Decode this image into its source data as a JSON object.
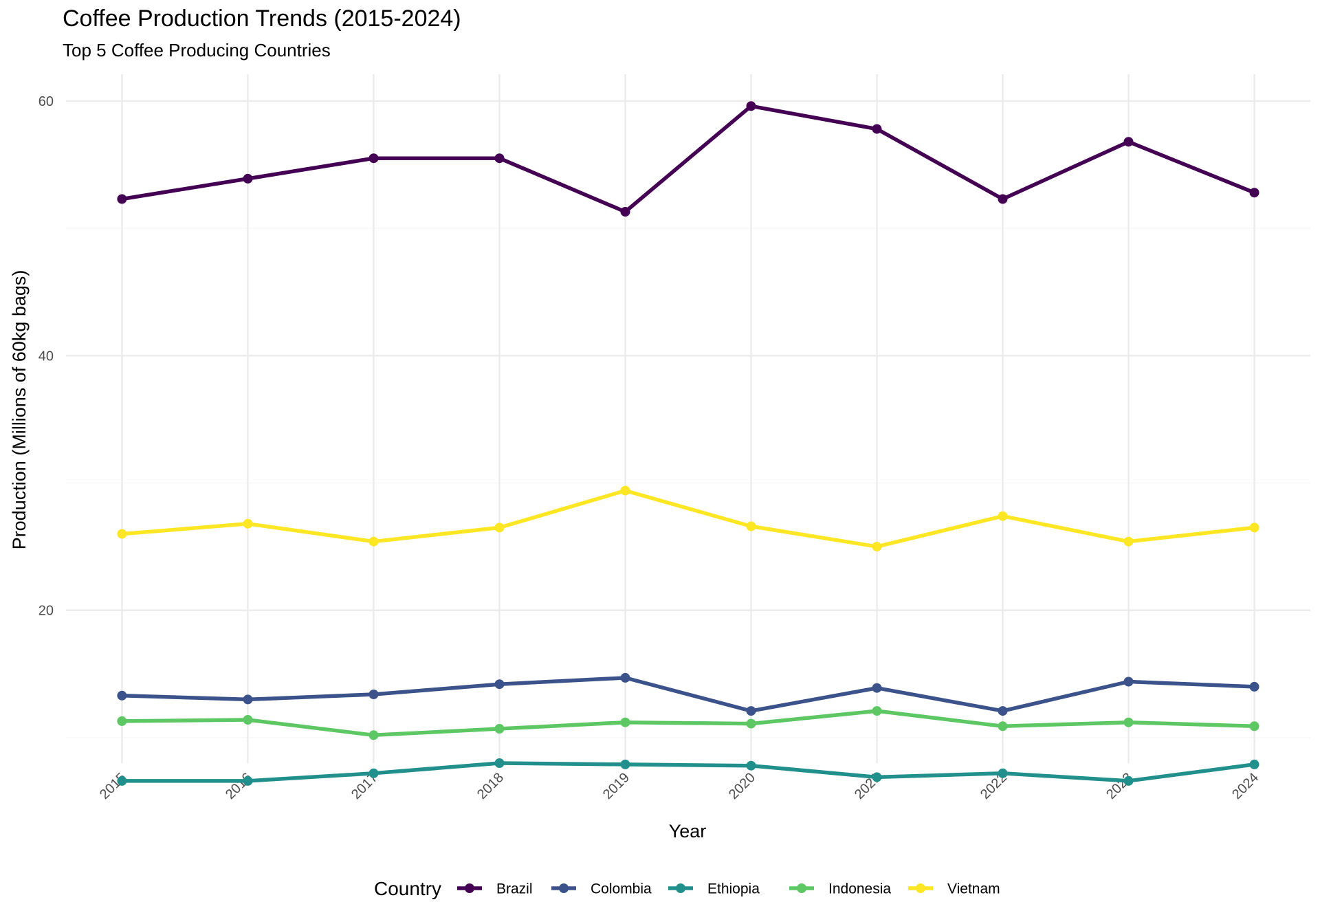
{
  "chart_data": {
    "type": "line",
    "title": "Coffee Production Trends (2015-2024)",
    "subtitle": "Top 5 Coffee Producing Countries",
    "xlabel": "Year",
    "ylabel": "Production (Millions of 60kg bags)",
    "x": [
      "2015",
      "2016",
      "2017",
      "2018",
      "2019",
      "2020",
      "2021",
      "2022",
      "2023",
      "2024"
    ],
    "x_range": [
      2015,
      2024
    ],
    "ylim": [
      8.0,
      62.1
    ],
    "yticks": [
      20,
      40,
      60
    ],
    "grid": true,
    "legend": {
      "title": "Country",
      "position": "bottom"
    },
    "series": [
      {
        "name": "Brazil",
        "color": "#440154",
        "values": [
          52.3,
          53.9,
          55.5,
          55.5,
          51.3,
          59.6,
          57.8,
          52.3,
          56.8,
          52.8
        ]
      },
      {
        "name": "Colombia",
        "color": "#3B528B",
        "values": [
          13.3,
          13.0,
          13.4,
          14.2,
          14.7,
          12.1,
          13.9,
          12.1,
          14.4,
          14.0
        ]
      },
      {
        "name": "Ethiopia",
        "color": "#21908C",
        "values": [
          6.6,
          6.6,
          7.2,
          8.0,
          7.9,
          7.8,
          6.9,
          7.2,
          6.6,
          7.9
        ]
      },
      {
        "name": "Indonesia",
        "color": "#5DC863",
        "values": [
          11.3,
          11.4,
          10.2,
          10.7,
          11.2,
          11.1,
          12.1,
          10.9,
          11.2,
          10.9
        ]
      },
      {
        "name": "Vietnam",
        "color": "#FDE725",
        "values": [
          26.0,
          26.8,
          25.4,
          26.5,
          29.4,
          26.6,
          25.0,
          27.4,
          25.4,
          26.5
        ]
      }
    ]
  }
}
